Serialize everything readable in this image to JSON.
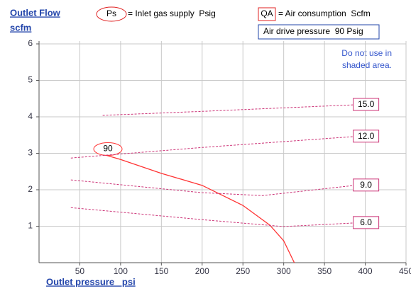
{
  "chart_data": {
    "type": "line",
    "title": "Outlet Flow",
    "y_label": "scfm",
    "x_label": "Outlet pressure   psi",
    "legend": [
      {
        "symbol": "Ps",
        "text": "= Inlet gas supply  Psig"
      },
      {
        "symbol": "QA",
        "text": "= Air consumption  Scfm"
      }
    ],
    "annotations": [
      "Air drive pressure  90 Psig",
      "Do not use in",
      "shaded area."
    ],
    "xlim": [
      0,
      450
    ],
    "xticks": [
      50,
      100,
      150,
      200,
      250,
      300,
      350,
      400,
      450
    ],
    "ylim": [
      0,
      6
    ],
    "yticks": [
      1,
      2,
      3,
      4,
      5,
      6
    ],
    "grid": true,
    "series": [
      {
        "name": "90",
        "color": "#ff3333",
        "dash": false,
        "x": [
          74,
          100,
          150,
          200,
          250,
          283,
          300,
          313
        ],
        "values": [
          3.0,
          2.83,
          2.45,
          2.12,
          1.57,
          1.03,
          0.6,
          0
        ]
      },
      {
        "name": "15.0",
        "color": "#cc3377",
        "dash": true,
        "x": [
          78,
          200,
          387
        ],
        "values": [
          4.04,
          4.15,
          4.33
        ]
      },
      {
        "name": "12.0",
        "color": "#cc3377",
        "dash": true,
        "x": [
          39,
          200,
          387
        ],
        "values": [
          2.87,
          3.16,
          3.46
        ]
      },
      {
        "name": "9.0",
        "color": "#cc3377",
        "dash": true,
        "x": [
          39,
          200,
          274,
          387
        ],
        "values": [
          2.27,
          1.92,
          1.84,
          2.12
        ]
      },
      {
        "name": "6.0",
        "color": "#cc3377",
        "dash": true,
        "x": [
          39,
          200,
          300,
          387
        ],
        "values": [
          1.51,
          1.18,
          0.99,
          1.09
        ]
      }
    ]
  }
}
